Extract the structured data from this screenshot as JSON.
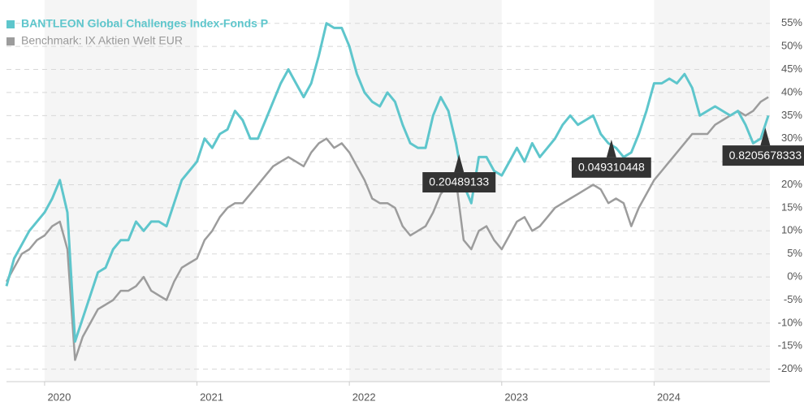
{
  "chart_data": {
    "type": "line",
    "legend": "top-left",
    "grid": true,
    "xlim": [
      2019.75,
      2024.76
    ],
    "xticks": [
      2020,
      2021,
      2022,
      2023,
      2024
    ],
    "ylim": [
      -22.7,
      58.3
    ],
    "yticks": [
      {
        "value": -20,
        "label": "-20%"
      },
      {
        "value": -15,
        "label": "-15%"
      },
      {
        "value": -10,
        "label": "-10%"
      },
      {
        "value": -5,
        "label": "-5%"
      },
      {
        "value": 0,
        "label": "0%"
      },
      {
        "value": 5,
        "label": "5%"
      },
      {
        "value": 10,
        "label": "10%"
      },
      {
        "value": 15,
        "label": "15%"
      },
      {
        "value": 20,
        "label": "20%"
      },
      {
        "value": 25,
        "label": "25%"
      },
      {
        "value": 30,
        "label": "30%"
      },
      {
        "value": 35,
        "label": "35%"
      },
      {
        "value": 40,
        "label": "40%"
      },
      {
        "value": 45,
        "label": "45%"
      },
      {
        "value": 50,
        "label": "50%"
      },
      {
        "value": 55,
        "label": "55%"
      }
    ],
    "x": [
      2019.75,
      2019.8,
      2019.85,
      2019.9,
      2019.95,
      2020,
      2020.05,
      2020.1,
      2020.15,
      2020.2,
      2020.25,
      2020.3,
      2020.35,
      2020.4,
      2020.45,
      2020.5,
      2020.55,
      2020.6,
      2020.65,
      2020.7,
      2020.75,
      2020.8,
      2020.85,
      2020.9,
      2020.95,
      2021,
      2021.05,
      2021.1,
      2021.15,
      2021.2,
      2021.25,
      2021.3,
      2021.35,
      2021.4,
      2021.45,
      2021.5,
      2021.55,
      2021.6,
      2021.65,
      2021.7,
      2021.75,
      2021.8,
      2021.85,
      2021.9,
      2021.95,
      2022,
      2022.05,
      2022.1,
      2022.15,
      2022.2,
      2022.25,
      2022.3,
      2022.35,
      2022.4,
      2022.45,
      2022.5,
      2022.55,
      2022.6,
      2022.65,
      2022.7,
      2022.75,
      2022.8,
      2022.85,
      2022.9,
      2022.95,
      2023,
      2023.05,
      2023.1,
      2023.15,
      2023.2,
      2023.25,
      2023.3,
      2023.35,
      2023.4,
      2023.45,
      2023.5,
      2023.55,
      2023.6,
      2023.65,
      2023.7,
      2023.75,
      2023.8,
      2023.85,
      2023.9,
      2023.95,
      2024,
      2024.05,
      2024.1,
      2024.15,
      2024.2,
      2024.25,
      2024.3,
      2024.35,
      2024.4,
      2024.45,
      2024.5,
      2024.55,
      2024.6,
      2024.65,
      2024.7,
      2024.75
    ],
    "series": [
      {
        "name": "BANTLEON Global Challenges Index-Fonds P",
        "color": "#5ec6cc",
        "values": [
          -2,
          4,
          7,
          10,
          12,
          14,
          17,
          21,
          14,
          -14,
          -9,
          -4,
          1,
          2,
          6,
          8,
          8,
          12,
          10,
          12,
          12,
          11,
          16,
          21,
          23,
          25,
          30,
          28,
          31,
          32,
          36,
          34,
          30,
          30,
          34,
          38,
          42,
          45,
          42,
          39,
          42,
          48,
          55,
          54,
          54,
          50,
          44,
          40,
          38,
          37,
          40,
          38,
          33,
          29,
          28,
          28,
          35,
          39,
          36,
          29,
          20,
          16,
          26,
          26,
          23,
          22,
          25,
          28,
          25,
          29,
          26,
          28,
          30,
          33,
          35,
          33,
          34,
          35,
          31,
          29,
          28,
          26,
          27,
          31,
          36,
          42,
          42,
          43,
          42,
          44,
          41,
          35,
          36,
          37,
          36,
          35,
          36,
          33,
          29,
          30,
          35
        ]
      },
      {
        "name": "Benchmark: IX Aktien Welt EUR",
        "color": "#9c9c9c",
        "values": [
          -1,
          2,
          5,
          6,
          8,
          9,
          11,
          12,
          6,
          -18,
          -13,
          -10,
          -7,
          -6,
          -5,
          -3,
          -3,
          -2,
          0,
          -3,
          -4,
          -5,
          -1,
          2,
          3,
          4,
          8,
          10,
          13,
          15,
          16,
          16,
          18,
          20,
          22,
          24,
          25,
          26,
          25,
          24,
          27,
          29,
          30,
          28,
          29,
          27,
          24,
          21,
          17,
          16,
          16,
          15,
          11,
          9,
          10,
          11,
          14,
          18,
          20,
          21,
          8,
          6,
          10,
          11,
          8,
          6,
          9,
          12,
          13,
          10,
          11,
          13,
          15,
          16,
          17,
          18,
          19,
          20,
          19,
          16,
          17,
          16,
          11,
          15,
          18,
          21,
          23,
          25,
          27,
          29,
          31,
          31,
          31,
          33,
          34,
          35,
          36,
          35,
          36,
          38,
          39
        ]
      }
    ],
    "annotations": [
      {
        "text": "0.20489133",
        "x": 2022.72,
        "y": 26.6
      },
      {
        "text": "0.049310448",
        "x": 2023.72,
        "y": 29.8
      },
      {
        "text": "0.8205678333",
        "x": 2024.73,
        "y": 32.4
      }
    ]
  }
}
